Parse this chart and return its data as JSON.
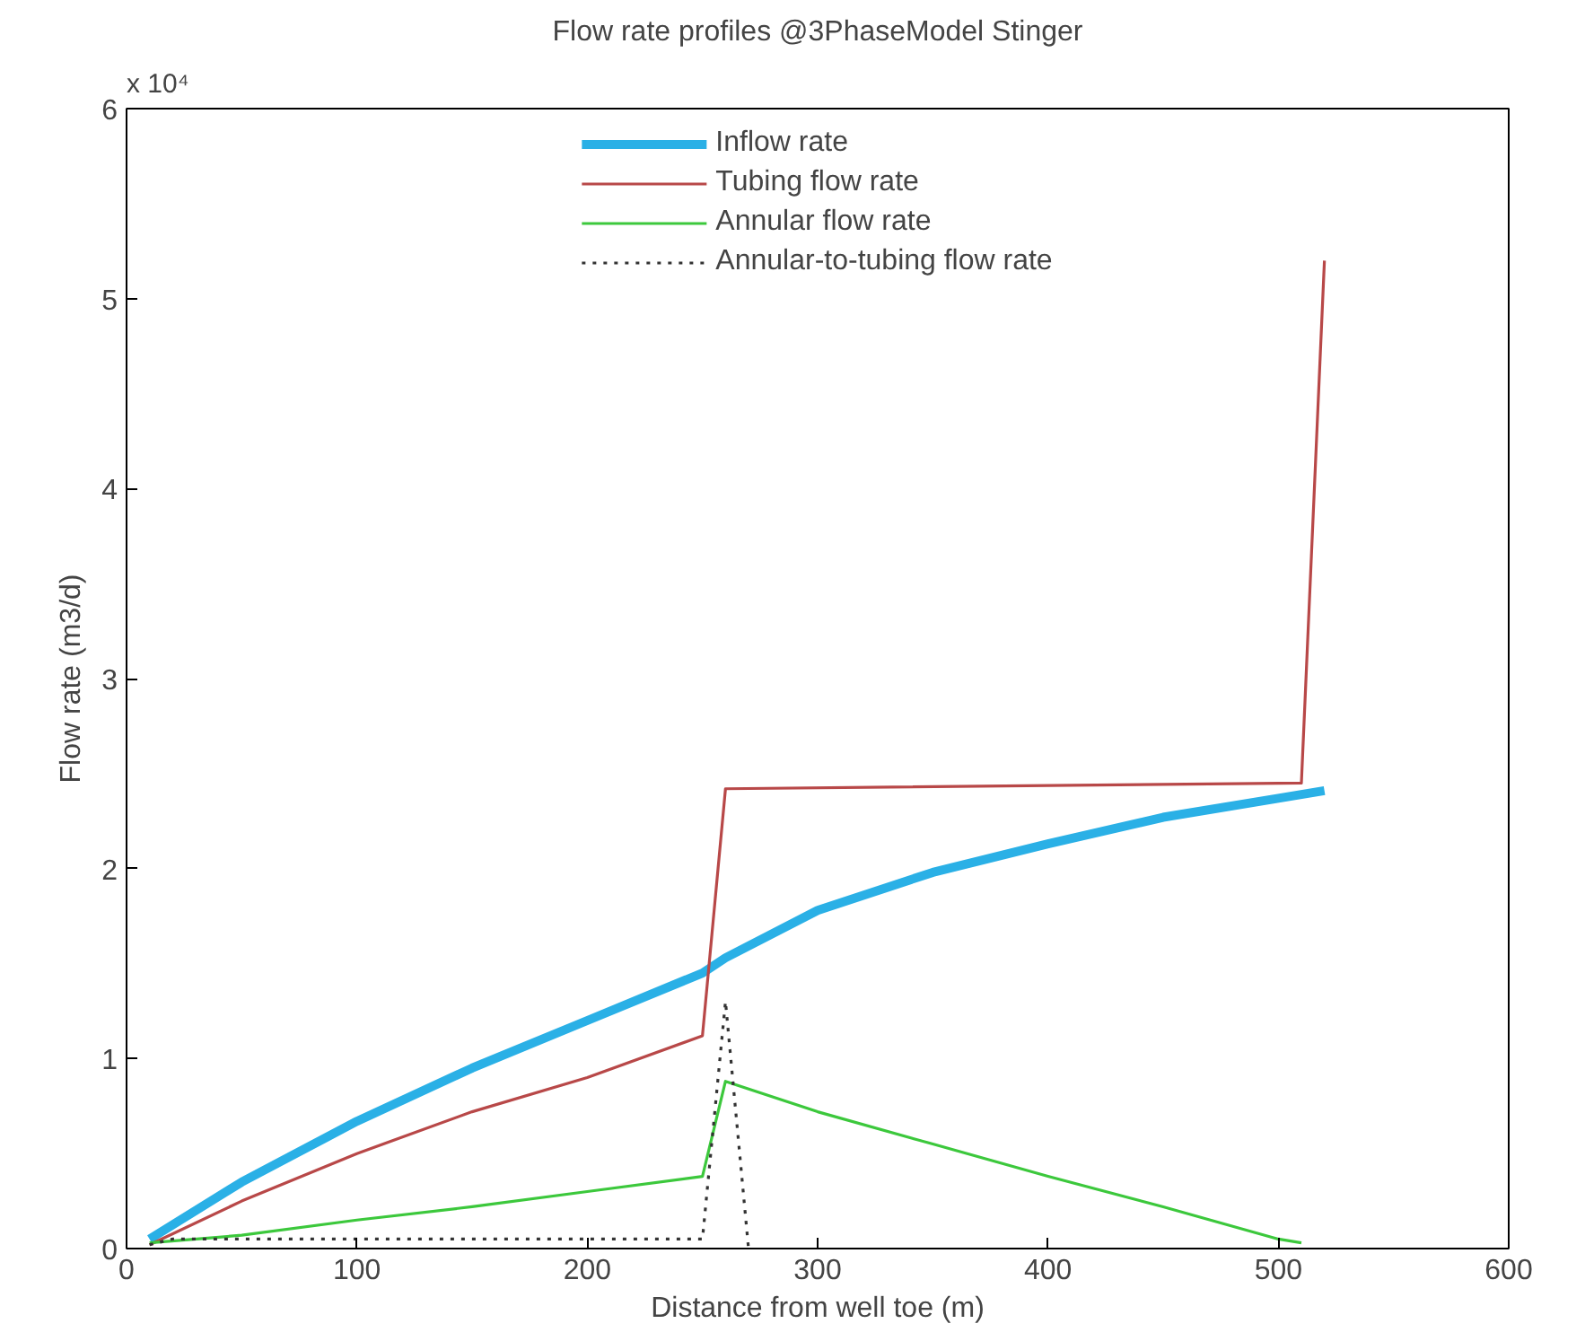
{
  "chart_data": {
    "type": "line",
    "title": "Flow rate profiles @3PhaseModel Stinger",
    "xlabel": "Distance from well toe (m)",
    "ylabel": "Flow rate (m3/d)",
    "annotations": [
      "x 10⁴"
    ],
    "xlim": [
      0,
      600
    ],
    "xticks": [
      0,
      100,
      200,
      300,
      400,
      500,
      600
    ],
    "ylim": [
      0,
      6
    ],
    "yticks": [
      0,
      1,
      2,
      3,
      4,
      5,
      6
    ],
    "grid": false,
    "legend": "top",
    "marker": "none",
    "series": [
      {
        "name": "Inflow rate",
        "color": "#2ab0e6",
        "x": [
          10,
          50,
          100,
          150,
          200,
          250,
          260,
          300,
          350,
          400,
          450,
          500,
          520
        ],
        "values": [
          0.05,
          0.35,
          0.67,
          0.95,
          1.2,
          1.45,
          1.53,
          1.78,
          1.98,
          2.13,
          2.27,
          2.37,
          2.41
        ]
      },
      {
        "name": "Tubing flow rate",
        "color": "#b84848",
        "x": [
          10,
          50,
          100,
          150,
          200,
          250,
          260,
          510,
          520
        ],
        "values": [
          0.02,
          0.25,
          0.5,
          0.72,
          0.9,
          1.12,
          2.42,
          2.45,
          5.2
        ]
      },
      {
        "name": "Annular flow rate",
        "color": "#3cc83c",
        "x": [
          10,
          50,
          100,
          150,
          200,
          250,
          260,
          300,
          350,
          400,
          450,
          500,
          510
        ],
        "values": [
          0.03,
          0.07,
          0.15,
          0.22,
          0.3,
          0.38,
          0.88,
          0.72,
          0.55,
          0.38,
          0.22,
          0.05,
          0.03
        ]
      },
      {
        "name": "Annular-to-tubing flow rate",
        "color": "#333333",
        "line_style": "dotted",
        "x": [
          10,
          20,
          250,
          260,
          270
        ],
        "values": [
          0.02,
          0.05,
          0.05,
          1.3,
          0.0
        ]
      }
    ]
  }
}
